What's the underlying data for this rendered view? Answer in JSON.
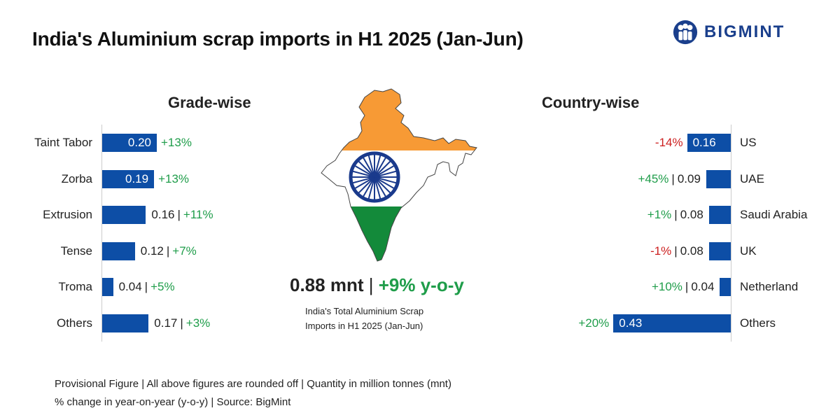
{
  "title": "India's Aluminium scrap imports in H1 2025 (Jan-Jun)",
  "brand": "BIGMINT",
  "colors": {
    "bar": "#0d4ea6",
    "positive": "#1f9d4a",
    "negative": "#cc1f1f",
    "saffron": "#f79a35",
    "green": "#138a3a",
    "chakra": "#1a3a8c"
  },
  "summary": {
    "total": "0.88 mnt",
    "separator": "|",
    "change": "+9% y-o-y",
    "caption_line1": "India's Total Aluminium Scrap",
    "caption_line2": "Imports in H1 2025 (Jan-Jun)"
  },
  "footnote": {
    "line1": "Provisional Figure | All above figures are rounded off | Quantity in million tonnes (mnt)",
    "line2": "% change in year-on-year (y-o-y) | Source: BigMint"
  },
  "chart_data": [
    {
      "type": "bar",
      "orientation": "horizontal",
      "title": "Grade-wise",
      "categories": [
        "Taint Tabor",
        "Zorba",
        "Extrusion",
        "Tense",
        "Troma",
        "Others"
      ],
      "values": [
        0.2,
        0.19,
        0.16,
        0.12,
        0.04,
        0.17
      ],
      "value_labels": [
        "0.20",
        "0.19",
        "0.16",
        "0.12",
        "0.04",
        "0.17"
      ],
      "changes": [
        "+13%",
        "+13%",
        "+11%",
        "+7%",
        "+5%",
        "+3%"
      ],
      "unit": "mnt"
    },
    {
      "type": "bar",
      "orientation": "horizontal",
      "title": "Country-wise",
      "categories": [
        "US",
        "UAE",
        "Saudi Arabia",
        "UK",
        "Netherland",
        "Others"
      ],
      "values": [
        0.16,
        0.09,
        0.08,
        0.08,
        0.04,
        0.43
      ],
      "value_labels": [
        "0.16",
        "0.09",
        "0.08",
        "0.08",
        "0.04",
        "0.43"
      ],
      "changes": [
        "-14%",
        "+45%",
        "+1%",
        "-1%",
        "+10%",
        "+20%"
      ],
      "unit": "mnt"
    }
  ]
}
